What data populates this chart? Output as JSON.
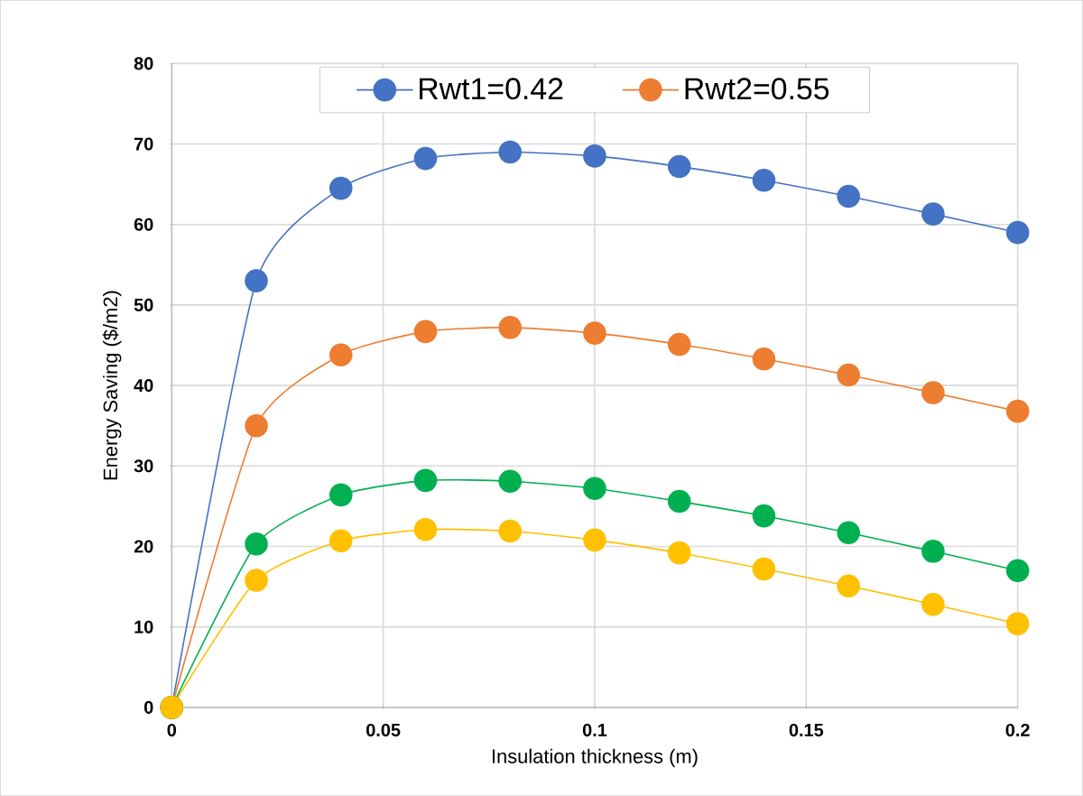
{
  "chart_data": {
    "type": "line",
    "xlabel": "Insulation thickness (m)",
    "ylabel": "Energy Saving ($/m2)",
    "x": [
      0,
      0.02,
      0.04,
      0.06,
      0.08,
      0.1,
      0.12,
      0.14,
      0.16,
      0.18,
      0.2
    ],
    "series": [
      {
        "name": "Rwt1=0.42",
        "color": "#4472c4",
        "values": [
          0,
          53,
          64.5,
          68.2,
          69,
          68.5,
          67.2,
          65.5,
          63.5,
          61.3,
          59
        ]
      },
      {
        "name": "Rwt2=0.55",
        "color": "#ed7d31",
        "values": [
          0,
          35,
          43.8,
          46.7,
          47.2,
          46.5,
          45.1,
          43.3,
          41.3,
          39.1,
          36.8
        ]
      },
      {
        "color": "#00b050",
        "values": [
          0,
          20.3,
          26.4,
          28.2,
          28.1,
          27.2,
          25.6,
          23.8,
          21.7,
          19.4,
          17.0
        ]
      },
      {
        "color": "#ffc000",
        "values": [
          0,
          15.8,
          20.7,
          22.1,
          21.9,
          20.8,
          19.2,
          17.2,
          15.1,
          12.8,
          10.4
        ]
      }
    ],
    "xlim": [
      0,
      0.2
    ],
    "xticks": [
      0,
      0.05,
      0.1,
      0.15,
      0.2
    ],
    "ylim": [
      0,
      80
    ],
    "yticks": [
      0,
      10,
      20,
      30,
      40,
      50,
      60,
      70,
      80
    ],
    "grid": true,
    "legend": "top",
    "marker": "circle",
    "line_style": "solid"
  }
}
